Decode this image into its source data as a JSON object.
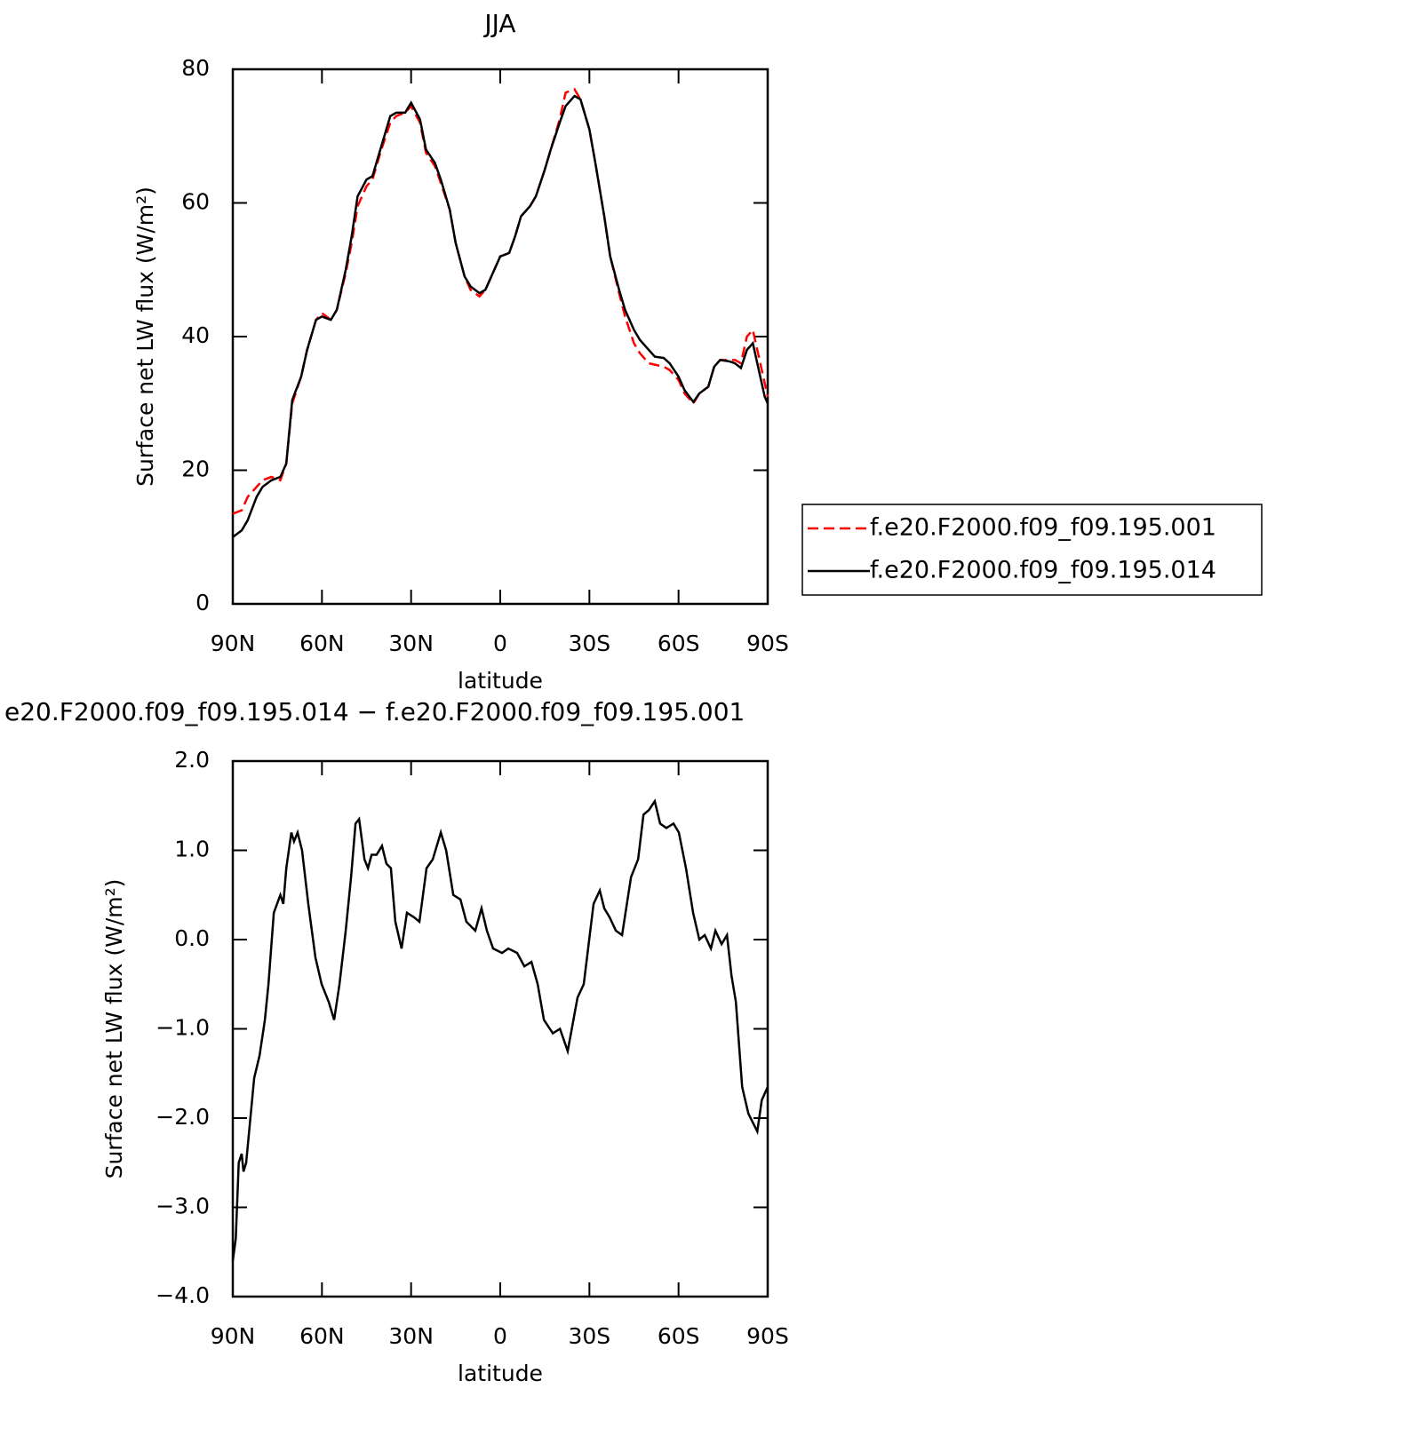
{
  "chart_data": [
    {
      "type": "line",
      "title": "JJA",
      "xlabel": "latitude",
      "ylabel": "Surface net LW flux (W/m²)",
      "xlim": [
        90,
        -90
      ],
      "xticks": [
        {
          "value": 90,
          "label": "90N"
        },
        {
          "value": 60,
          "label": "60N"
        },
        {
          "value": 30,
          "label": "30N"
        },
        0,
        {
          "value": -30,
          "label": "30S"
        },
        {
          "value": -60,
          "label": "60S"
        },
        {
          "value": -90,
          "label": "90S"
        }
      ],
      "ylim": [
        0,
        80
      ],
      "yticks": [
        0,
        20,
        40,
        60,
        80
      ],
      "legend": "outside right",
      "x": [
        90,
        87,
        85,
        82,
        80,
        77,
        74,
        72,
        70,
        67,
        65,
        62,
        60,
        57,
        55,
        52,
        50,
        48,
        45,
        43,
        40,
        37,
        35,
        32,
        30,
        27,
        25,
        22,
        20,
        17,
        15,
        12,
        10,
        7,
        5,
        2,
        0,
        -3,
        -5,
        -7,
        -10,
        -12,
        -15,
        -17,
        -20,
        -22,
        -25,
        -27,
        -30,
        -32,
        -35,
        -37,
        -40,
        -42,
        -45,
        -47,
        -50,
        -52,
        -55,
        -57,
        -60,
        -62,
        -65,
        -67,
        -70,
        -72,
        -74,
        -77,
        -79,
        -81,
        -83,
        -85,
        -87,
        -89,
        -90
      ],
      "series": [
        {
          "name": "f.e20.F2000.f09_f09.195.001",
          "color": "#ff0000",
          "linestyle": "dashed",
          "values": [
            13.5,
            14,
            16,
            17.5,
            18.5,
            19,
            18.5,
            21,
            30,
            34,
            38,
            42.5,
            43.5,
            42.5,
            44,
            49.5,
            54,
            59.5,
            62.5,
            63.5,
            68,
            72,
            73,
            73.5,
            74.5,
            72,
            67.5,
            65.5,
            63,
            59,
            54,
            49,
            47,
            46,
            47,
            50,
            52,
            52.5,
            55,
            58,
            59.5,
            61,
            65,
            68,
            72.5,
            76.5,
            77,
            75.5,
            71,
            66,
            58,
            52,
            46.5,
            43,
            39,
            37.5,
            36,
            35.8,
            35.5,
            35,
            33.5,
            31.5,
            30,
            31.5,
            32.5,
            35.5,
            36.5,
            36.5,
            36.5,
            36,
            40,
            41,
            37,
            33,
            31
          ]
        },
        {
          "name": "f.e20.F2000.f09_f09.195.014",
          "color": "#000000",
          "linestyle": "solid",
          "values": [
            10,
            11,
            12.5,
            16,
            17.5,
            18.5,
            19,
            21,
            30.5,
            34,
            38,
            42.5,
            43,
            42.5,
            44,
            50,
            55,
            61,
            63.5,
            64,
            68.5,
            73,
            73.5,
            73.5,
            75,
            72.5,
            68,
            66,
            63.5,
            59,
            54,
            49,
            47.5,
            46.5,
            47,
            50,
            52,
            52.5,
            55,
            58,
            59.5,
            61,
            65,
            68,
            72,
            74.5,
            76,
            75.5,
            71,
            66,
            58,
            52,
            47,
            44,
            41,
            39.5,
            38,
            37,
            36.8,
            36,
            34,
            32,
            30.2,
            31.5,
            32.5,
            35.5,
            36.5,
            36.3,
            36,
            35.3,
            38,
            39,
            35,
            31,
            30
          ]
        }
      ]
    },
    {
      "type": "line",
      "title": "e20.F2000.f09_f09.195.014 − f.e20.F2000.f09_f09.195.001",
      "xlabel": "latitude",
      "ylabel": "Surface net LW flux (W/m²)",
      "xlim": [
        90,
        -90
      ],
      "xticks": [
        {
          "value": 90,
          "label": "90N"
        },
        {
          "value": 60,
          "label": "60N"
        },
        {
          "value": 30,
          "label": "30N"
        },
        0,
        {
          "value": -30,
          "label": "30S"
        },
        {
          "value": -60,
          "label": "60S"
        },
        {
          "value": -90,
          "label": "90S"
        }
      ],
      "ylim": [
        -4,
        2
      ],
      "yticks": [
        {
          "value": -4,
          "label": "−4.0"
        },
        {
          "value": -3,
          "label": "−3.0"
        },
        {
          "value": -2,
          "label": "−2.0"
        },
        {
          "value": -1,
          "label": "−1.0"
        },
        {
          "value": 0,
          "label": "0.0"
        },
        {
          "value": 1,
          "label": "1.0"
        },
        {
          "value": 2,
          "label": "2.0"
        }
      ],
      "color": "#000000",
      "x": [
        90,
        89,
        88,
        87,
        86.4,
        85.5,
        82.8,
        81,
        79.2,
        78,
        76.2,
        74,
        73,
        72,
        70.3,
        69.4,
        68.2,
        66.7,
        64.6,
        62.2,
        60.1,
        57.7,
        55.9,
        54.1,
        52,
        50.2,
        48.7,
        47.5,
        45.7,
        44.5,
        43.3,
        41.6,
        39.8,
        38.3,
        36.8,
        35.3,
        33.2,
        31.4,
        29,
        27.2,
        24.8,
        22.7,
        20,
        18.2,
        15.8,
        13.4,
        11.4,
        8.4,
        6.3,
        4.5,
        2.4,
        -0.6,
        -2.7,
        -5.7,
        -8.1,
        -10.5,
        -12.6,
        -14.7,
        -17.7,
        -20.1,
        -22.7,
        -26,
        -28.1,
        -31.4,
        -33.5,
        -35,
        -36.8,
        -38.9,
        -41,
        -44,
        -46.4,
        -48.2,
        -50,
        -52,
        -53.8,
        -55.9,
        -58.3,
        -60.1,
        -62.5,
        -64.9,
        -67,
        -68.8,
        -70.9,
        -72.4,
        -74.5,
        -76.3,
        -77.8,
        -79.3,
        -81.4,
        -83.5,
        -86.5,
        -88,
        -90
      ],
      "values": [
        -3.6,
        -3.35,
        -2.5,
        -2.4,
        -2.6,
        -2.5,
        -1.55,
        -1.3,
        -0.9,
        -0.5,
        0.3,
        0.5,
        0.4,
        0.8,
        1.2,
        1.1,
        1.2,
        1.0,
        0.4,
        -0.2,
        -0.5,
        -0.7,
        -0.9,
        -0.5,
        0.1,
        0.7,
        1.3,
        1.35,
        0.9,
        0.8,
        0.95,
        0.95,
        1.05,
        0.85,
        0.8,
        0.2,
        -0.1,
        0.3,
        0.25,
        0.2,
        0.8,
        0.9,
        1.2,
        1.0,
        0.5,
        0.45,
        0.2,
        0.1,
        0.35,
        0.1,
        -0.1,
        -0.15,
        -0.1,
        -0.15,
        -0.3,
        -0.25,
        -0.5,
        -0.9,
        -1.05,
        -1.0,
        -1.25,
        -0.65,
        -0.5,
        0.4,
        0.55,
        0.35,
        0.25,
        0.1,
        0.05,
        0.7,
        0.9,
        1.4,
        1.45,
        1.55,
        1.3,
        1.25,
        1.3,
        1.2,
        0.8,
        0.3,
        0.0,
        0.05,
        -0.1,
        0.1,
        -0.05,
        0.05,
        -0.4,
        -0.7,
        -1.65,
        -1.95,
        -2.15,
        -1.8,
        -1.65
      ]
    }
  ]
}
